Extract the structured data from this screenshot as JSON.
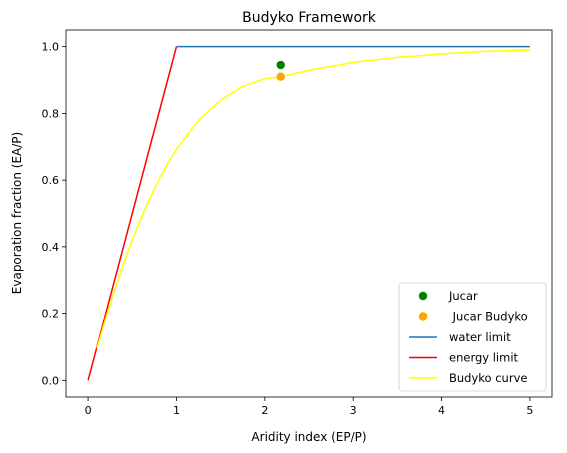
{
  "chart_data": {
    "type": "line",
    "title": "Budyko Framework",
    "xlabel": "Aridity index (EP/P)",
    "ylabel": "Evaporation fraction (EA/P)",
    "xlim": [
      -0.25,
      5.25
    ],
    "ylim": [
      -0.05,
      1.05
    ],
    "xticks": [
      0,
      1,
      2,
      3,
      4,
      5
    ],
    "yticks": [
      0.0,
      0.2,
      0.4,
      0.6,
      0.8,
      1.0
    ],
    "xtick_labels": [
      "0",
      "1",
      "2",
      "3",
      "4",
      "5"
    ],
    "ytick_labels": [
      "0.0",
      "0.2",
      "0.4",
      "0.6",
      "0.8",
      "1.0"
    ],
    "grid": false,
    "legend_position": "bottom-right",
    "series": [
      {
        "name": "Jucar",
        "kind": "scatter",
        "color": "#008000",
        "x": [
          2.18
        ],
        "y": [
          0.945
        ]
      },
      {
        "name": " Jucar Budyko",
        "kind": "scatter",
        "color": "#ffa500",
        "x": [
          2.18
        ],
        "y": [
          0.91
        ]
      },
      {
        "name": "water limit",
        "kind": "line",
        "color": "#1f77b4",
        "x": [
          1,
          5
        ],
        "y": [
          1,
          1
        ]
      },
      {
        "name": "energy limit",
        "kind": "line",
        "color": "#ff0000",
        "x": [
          0,
          1
        ],
        "y": [
          0,
          1
        ]
      },
      {
        "name": "Budyko curve",
        "kind": "line",
        "color": "#ffff00",
        "x": [
          0.1,
          0.2,
          0.3,
          0.4,
          0.5,
          0.6,
          0.7,
          0.8,
          0.9,
          1.0,
          1.25,
          1.5,
          1.75,
          2.0,
          2.18,
          2.5,
          3.0,
          3.5,
          4.0,
          4.5,
          5.0
        ],
        "y": [
          0.096,
          0.186,
          0.27,
          0.348,
          0.42,
          0.486,
          0.546,
          0.601,
          0.649,
          0.692,
          0.779,
          0.84,
          0.881,
          0.904,
          0.91,
          0.929,
          0.953,
          0.968,
          0.978,
          0.986,
          0.99
        ]
      }
    ]
  }
}
